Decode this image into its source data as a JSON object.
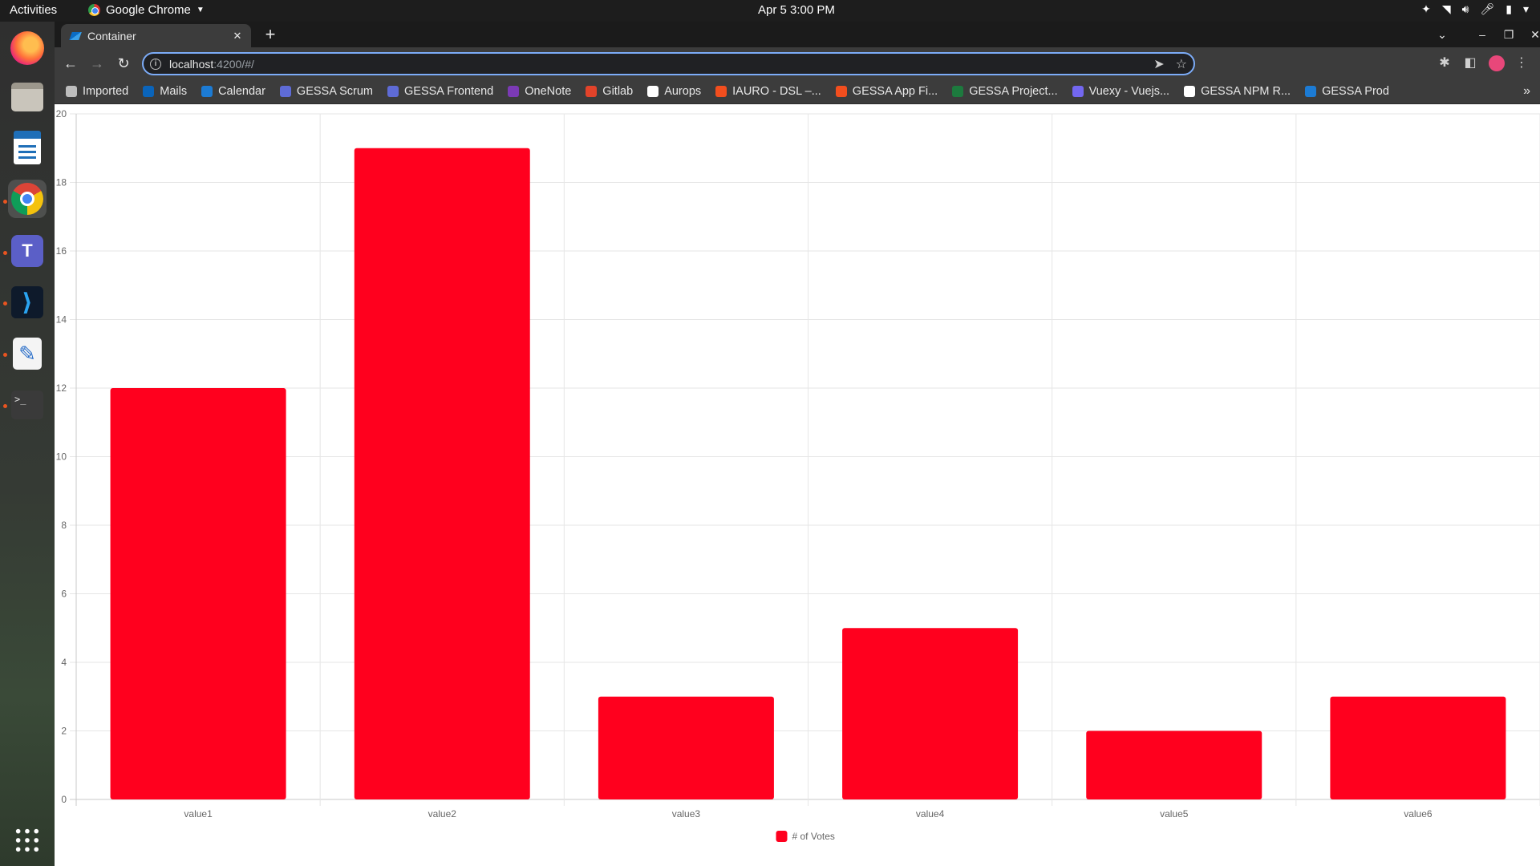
{
  "topbar": {
    "activities": "Activities",
    "app_name": "Google Chrome",
    "clock": "Apr 5   3:00 PM"
  },
  "dock": {
    "items": [
      "firefox-icon",
      "files-icon",
      "writer-icon",
      "chrome-icon",
      "teams-icon",
      "vscode-icon",
      "text-editor-icon",
      "terminal-icon",
      "app-grid-icon"
    ],
    "terminal_prompt": ">_"
  },
  "browser": {
    "tab_title": "Container",
    "url_host": "localhost",
    "url_rest": ":4200/#/",
    "bookmarks": [
      {
        "label": "Imported",
        "color": "#bdbdbd"
      },
      {
        "label": "Mails",
        "color": "#0a64ba"
      },
      {
        "label": "Calendar",
        "color": "#1c7bd4"
      },
      {
        "label": "GESSA Scrum",
        "color": "#5e6bd6"
      },
      {
        "label": "GESSA Frontend",
        "color": "#5e6bd6"
      },
      {
        "label": "OneNote",
        "color": "#7b3ab5"
      },
      {
        "label": "Gitlab",
        "color": "#e2432a"
      },
      {
        "label": "Aurops",
        "color": "#ffffff"
      },
      {
        "label": "IAURO - DSL –...",
        "color": "#f24e1e"
      },
      {
        "label": "GESSA App Fi...",
        "color": "#f24e1e"
      },
      {
        "label": "GESSA Project...",
        "color": "#1d7a3e"
      },
      {
        "label": "Vuexy - Vuejs...",
        "color": "#7367f0"
      },
      {
        "label": "GESSA NPM R...",
        "color": "#ffffff"
      },
      {
        "label": "GESSA Prod",
        "color": "#1c7bd4"
      }
    ]
  },
  "chart_data": {
    "type": "bar",
    "categories": [
      "value1",
      "value2",
      "value3",
      "value4",
      "value5",
      "value6"
    ],
    "series": [
      {
        "name": "# of Votes",
        "values": [
          12,
          19,
          3,
          5,
          2,
          3
        ],
        "color": "#ff001e"
      }
    ],
    "ylim": [
      0,
      20
    ],
    "yticks": [
      0,
      2,
      4,
      6,
      8,
      10,
      12,
      14,
      16,
      18,
      20
    ],
    "grid": true,
    "legend": "bottom"
  }
}
